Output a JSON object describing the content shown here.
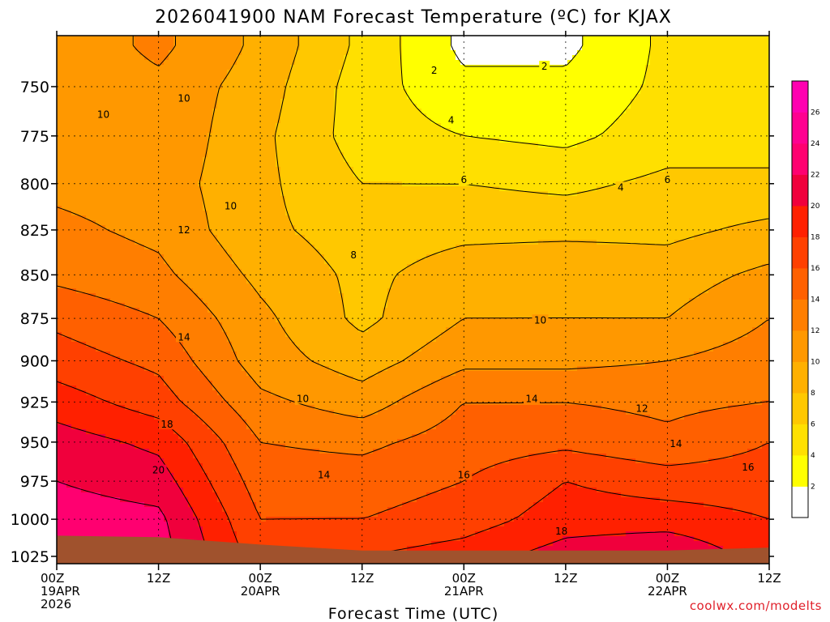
{
  "chart_data": {
    "type": "heatmap",
    "title": "2026041900 NAM Forecast Temperature (ºC) for KJAX",
    "xlabel": "Forecast Time (UTC)",
    "ylabel": "",
    "credit": "coolwx.com/modelts",
    "x_ticks": [
      {
        "hour": 0,
        "lines": [
          "00Z",
          "19APR",
          "2026"
        ]
      },
      {
        "hour": 12,
        "lines": [
          "12Z"
        ]
      },
      {
        "hour": 24,
        "lines": [
          "00Z",
          "20APR"
        ]
      },
      {
        "hour": 36,
        "lines": [
          "12Z"
        ]
      },
      {
        "hour": 48,
        "lines": [
          "00Z",
          "21APR"
        ]
      },
      {
        "hour": 60,
        "lines": [
          "12Z"
        ]
      },
      {
        "hour": 72,
        "lines": [
          "00Z",
          "22APR"
        ]
      },
      {
        "hour": 84,
        "lines": [
          "12Z"
        ]
      }
    ],
    "y_ticks": [
      750,
      775,
      800,
      825,
      850,
      875,
      900,
      925,
      950,
      975,
      1000,
      1025
    ],
    "xlim": [
      0,
      84
    ],
    "ylim": [
      1030,
      725
    ],
    "grid": true,
    "colorbar": {
      "levels": [
        2,
        4,
        6,
        8,
        10,
        12,
        14,
        16,
        18,
        20,
        22,
        24,
        26
      ],
      "colors": [
        "#ffffff",
        "#ffff00",
        "#ffe000",
        "#ffc800",
        "#ffb000",
        "#ff9800",
        "#ff7e00",
        "#ff6000",
        "#ff4000",
        "#ff2000",
        "#f0003c",
        "#ff0070",
        "#ff0090",
        "#ff00b0"
      ],
      "position": "right"
    },
    "terrain_color": "#a0522d",
    "times": [
      0,
      12,
      24,
      36,
      48,
      60,
      72,
      84
    ],
    "levels_hpa": [
      730,
      750,
      775,
      800,
      825,
      850,
      875,
      900,
      925,
      950,
      975,
      1000,
      1025
    ],
    "temperature": [
      [
        10.5,
        12.5,
        9.5,
        5.5,
        1.5,
        1.5,
        4.5,
        4.5
      ],
      [
        10.5,
        11.5,
        9.0,
        5.0,
        2.5,
        2.5,
        4.5,
        4.5
      ],
      [
        11.0,
        11.5,
        8.5,
        5.0,
        4.0,
        3.5,
        5.0,
        5.0
      ],
      [
        11.5,
        11.0,
        8.5,
        6.0,
        6.0,
        5.5,
        6.5,
        6.5
      ],
      [
        12.5,
        11.5,
        8.5,
        7.0,
        7.5,
        7.5,
        7.5,
        8.5
      ],
      [
        13.5,
        12.5,
        9.5,
        7.5,
        9.0,
        9.5,
        9.0,
        10.5
      ],
      [
        15.5,
        14.0,
        10.5,
        7.5,
        10.0,
        10.0,
        10.0,
        12.0
      ],
      [
        17.0,
        15.5,
        11.0,
        9.0,
        11.5,
        11.5,
        12.0,
        13.0
      ],
      [
        19.0,
        17.0,
        12.5,
        11.0,
        14.0,
        14.0,
        13.5,
        14.0
      ],
      [
        21.0,
        19.5,
        14.0,
        13.5,
        15.0,
        15.5,
        14.5,
        16.0
      ],
      [
        22.0,
        21.0,
        15.0,
        15.0,
        16.0,
        18.0,
        17.0,
        17.0
      ],
      [
        23.0,
        22.5,
        16.0,
        16.0,
        17.0,
        19.0,
        19.0,
        18.0
      ],
      [
        24.0,
        23.0,
        17.0,
        18.0,
        19.0,
        21.0,
        22.0,
        19.0
      ]
    ],
    "terrain_top_hpa": [
      1011,
      1012,
      1017,
      1021,
      1021,
      1021,
      1021,
      1019
    ],
    "contour_labels": [
      {
        "text": "2",
        "hour": 44.5,
        "p": 742
      },
      {
        "text": "2",
        "hour": 57.5,
        "p": 740
      },
      {
        "text": "4",
        "hour": 46.5,
        "p": 767
      },
      {
        "text": "4",
        "hour": 66.5,
        "p": 802
      },
      {
        "text": "6",
        "hour": 48.0,
        "p": 798
      },
      {
        "text": "6",
        "hour": 72.0,
        "p": 798
      },
      {
        "text": "8",
        "hour": 35.0,
        "p": 839
      },
      {
        "text": "10",
        "hour": 5.5,
        "p": 764
      },
      {
        "text": "10",
        "hour": 15.0,
        "p": 756
      },
      {
        "text": "10",
        "hour": 20.5,
        "p": 812
      },
      {
        "text": "10",
        "hour": 57.0,
        "p": 876
      },
      {
        "text": "10",
        "hour": 29.0,
        "p": 923
      },
      {
        "text": "12",
        "hour": 15.0,
        "p": 825
      },
      {
        "text": "12",
        "hour": 69.0,
        "p": 929
      },
      {
        "text": "14",
        "hour": 15.0,
        "p": 886
      },
      {
        "text": "14",
        "hour": 56.0,
        "p": 923
      },
      {
        "text": "14",
        "hour": 73.0,
        "p": 951
      },
      {
        "text": "14",
        "hour": 31.5,
        "p": 971
      },
      {
        "text": "16",
        "hour": 48.0,
        "p": 971
      },
      {
        "text": "16",
        "hour": 81.5,
        "p": 966
      },
      {
        "text": "18",
        "hour": 13.0,
        "p": 939
      },
      {
        "text": "18",
        "hour": 59.5,
        "p": 1008
      },
      {
        "text": "20",
        "hour": 12.0,
        "p": 968
      }
    ]
  }
}
